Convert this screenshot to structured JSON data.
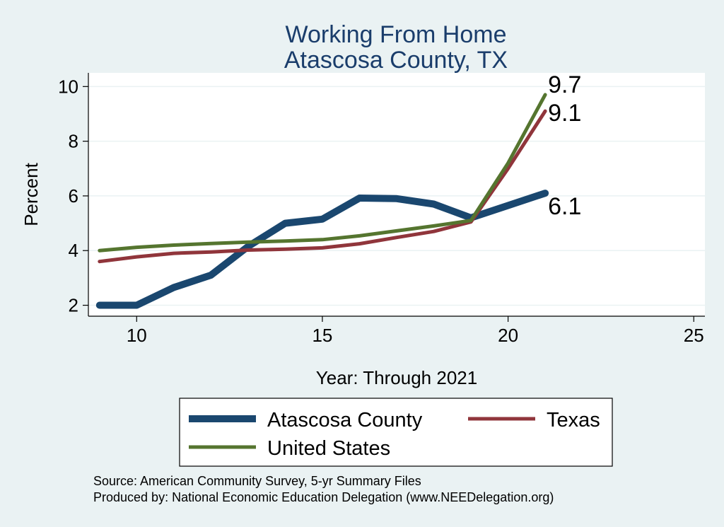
{
  "colors": {
    "background": "#eaf2f3",
    "plot_background": "#ffffff",
    "grid": "#eaf2f3",
    "title": "#1a3d6b",
    "county": "#1a476f",
    "texas": "#90353b",
    "us": "#55752f"
  },
  "chart_data": {
    "type": "line",
    "title": [
      "Working From Home",
      "Atascosa County, TX"
    ],
    "xlabel": "Year: Through 2021",
    "ylabel": "Percent",
    "xlim": [
      8.7,
      25.3
    ],
    "ylim": [
      1.6,
      10.5
    ],
    "x_ticks": [
      10,
      15,
      20,
      25
    ],
    "y_ticks": [
      2,
      4,
      6,
      8,
      10
    ],
    "grid": true,
    "legend_position": "bottom",
    "series": [
      {
        "name": "Atascosa County",
        "color_key": "county",
        "x": [
          9,
          10,
          11,
          12,
          13,
          14,
          15,
          16,
          17,
          18,
          19,
          20,
          21
        ],
        "values": [
          2.0,
          2.0,
          2.65,
          3.1,
          4.15,
          5.0,
          5.15,
          5.92,
          5.9,
          5.7,
          5.2,
          5.65,
          6.1
        ],
        "end_label": "6.1"
      },
      {
        "name": "Texas",
        "color_key": "texas",
        "x": [
          9,
          10,
          11,
          12,
          13,
          14,
          15,
          16,
          17,
          18,
          19,
          20,
          21
        ],
        "values": [
          3.6,
          3.77,
          3.9,
          3.95,
          4.02,
          4.05,
          4.1,
          4.25,
          4.48,
          4.7,
          5.05,
          7.0,
          9.1
        ],
        "end_label": "9.1"
      },
      {
        "name": "United States",
        "color_key": "us",
        "x": [
          9,
          10,
          11,
          12,
          13,
          14,
          15,
          16,
          17,
          18,
          19,
          20,
          21
        ],
        "values": [
          4.0,
          4.12,
          4.2,
          4.26,
          4.31,
          4.35,
          4.4,
          4.54,
          4.72,
          4.9,
          5.1,
          7.2,
          9.7
        ],
        "end_label": "9.7"
      }
    ]
  },
  "source": {
    "line1": "Source: American Community Survey, 5-yr Summary Files",
    "line2": "Produced by: National Economic Education Delegation (www.NEEDelegation.org)"
  }
}
